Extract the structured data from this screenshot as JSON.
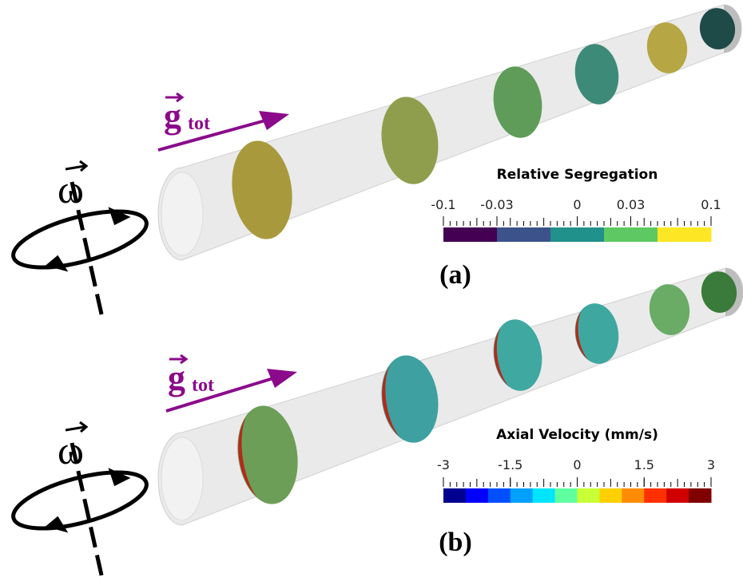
{
  "panels": [
    {
      "label": "(a)",
      "gravity_label": "g",
      "gravity_subscript": "tot",
      "rotation_label": "ω",
      "section_colors": [
        "#a89a3c",
        "#8f9e4c",
        "#5f9c5a",
        "#3e8a78",
        "#b6a644",
        "#1e4a48"
      ],
      "colorbar": {
        "title": "Relative Segregation",
        "ticks": [
          -0.1,
          -0.03,
          0,
          0.03,
          0.1
        ],
        "colors": [
          "#440154",
          "#3b528b",
          "#21918c",
          "#5ec962",
          "#fde725"
        ]
      }
    },
    {
      "label": "(b)",
      "gravity_label": "g",
      "gravity_subscript": "tot",
      "rotation_label": "ω",
      "section_colors": [
        "#6c9e58",
        "#3ea0a0",
        "#3fa8a0",
        "#3ea8a0",
        "#6aab66",
        "#3a7a3a"
      ],
      "colorbar": {
        "title": "Axial Velocity (mm/s)",
        "ticks": [
          -3,
          -1.5,
          0,
          1.5,
          3
        ],
        "colors": [
          "#00008f",
          "#0000ff",
          "#0050ff",
          "#00a0ff",
          "#00e5ff",
          "#60ffa0",
          "#c8ff36",
          "#ffd000",
          "#ff8c00",
          "#ff3000",
          "#d00000",
          "#800000"
        ]
      }
    }
  ]
}
